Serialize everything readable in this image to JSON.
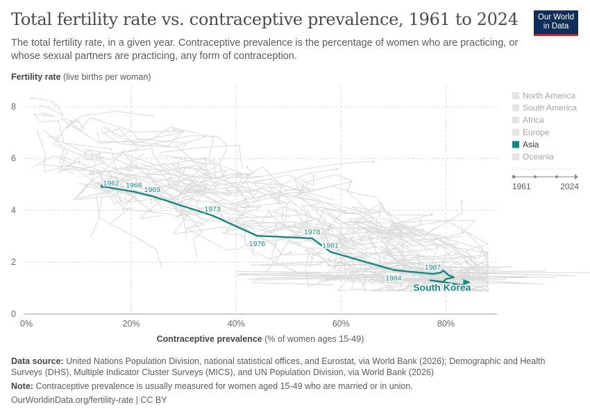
{
  "header": {
    "title": "Total fertility rate vs. contraceptive prevalence, 1961 to 2024",
    "subtitle": "The total fertility rate, in a given year. Contraceptive prevalence is the percentage of women who are practicing, or whose sexual partners are practicing, any form of contraception.",
    "logo_line1": "Our World",
    "logo_line2": "in Data"
  },
  "colors": {
    "highlight": "#16877e",
    "background_lines": "#dcdcdc",
    "grid": "#dedede",
    "logo_bg": "#0f2e5a",
    "logo_accent": "#c4262e"
  },
  "chart_data": {
    "type": "scatter",
    "title": "Total fertility rate vs. contraceptive prevalence, 1961 to 2024",
    "ylabel_bold": "Fertility rate",
    "ylabel_rest": "(live births per woman)",
    "xlabel_bold": "Contraceptive prevalence",
    "xlabel_rest": "(% of women ages 15-49)",
    "xlim": [
      0,
      90
    ],
    "ylim": [
      0,
      8.8
    ],
    "x_ticks": [
      {
        "value": 0,
        "label": "0%"
      },
      {
        "value": 20,
        "label": "20%"
      },
      {
        "value": 40,
        "label": "40%"
      },
      {
        "value": 60,
        "label": "60%"
      },
      {
        "value": 80,
        "label": "80%"
      }
    ],
    "y_ticks": [
      {
        "value": 0,
        "label": "0"
      },
      {
        "value": 2,
        "label": "2"
      },
      {
        "value": 4,
        "label": "4"
      },
      {
        "value": 6,
        "label": "6"
      },
      {
        "value": 8,
        "label": "8"
      }
    ],
    "grid": true,
    "legend_position": "right",
    "legend": [
      {
        "name": "North America",
        "active": false
      },
      {
        "name": "South America",
        "active": false
      },
      {
        "name": "Africa",
        "active": false
      },
      {
        "name": "Europe",
        "active": false
      },
      {
        "name": "Asia",
        "active": true
      },
      {
        "name": "Oceania",
        "active": false
      }
    ],
    "timeline": {
      "start": "1961",
      "end": "2024"
    },
    "highlighted_series": {
      "name": "South Korea",
      "points": [
        {
          "year": 1962,
          "x": 14.5,
          "y": 4.93
        },
        {
          "year": 1965,
          "x": 16.5,
          "y": 4.85
        },
        {
          "year": 1968,
          "x": 20.5,
          "y": 4.72
        },
        {
          "year": 1969,
          "x": 24.0,
          "y": 4.55
        },
        {
          "year": 1973,
          "x": 35.5,
          "y": 3.8
        },
        {
          "year": 1976,
          "x": 44.0,
          "y": 3.02
        },
        {
          "year": 1978,
          "x": 54.5,
          "y": 2.92
        },
        {
          "year": 1981,
          "x": 58.0,
          "y": 2.4
        },
        {
          "year": 1984,
          "x": 70.0,
          "y": 1.7
        },
        {
          "year": 1985,
          "x": 74.0,
          "y": 1.62
        },
        {
          "year": 1987,
          "x": 77.5,
          "y": 1.55
        },
        {
          "year": 1990,
          "x": 79.0,
          "y": 1.6
        },
        {
          "year": 1991,
          "x": 79.5,
          "y": 1.68
        },
        {
          "year": 1994,
          "x": 80.5,
          "y": 1.5
        },
        {
          "year": 1997,
          "x": 81.5,
          "y": 1.42
        },
        {
          "year": 2000,
          "x": 80.0,
          "y": 1.35
        },
        {
          "year": 2003,
          "x": 79.5,
          "y": 1.25
        },
        {
          "year": 2006,
          "x": 77.0,
          "y": 1.3
        },
        {
          "year": 2009,
          "x": 80.5,
          "y": 1.2
        },
        {
          "year": 2012,
          "x": 83.0,
          "y": 1.12
        },
        {
          "year": 2015,
          "x": 84.5,
          "y": 1.24
        }
      ],
      "labeled_years": [
        {
          "year": "1962",
          "x": 14.5,
          "y": 4.93,
          "pos": "right"
        },
        {
          "year": "1968",
          "x": 20.5,
          "y": 4.72,
          "pos": "above"
        },
        {
          "year": "1969",
          "x": 24.0,
          "y": 4.55,
          "pos": "above"
        },
        {
          "year": "1973",
          "x": 35.5,
          "y": 3.8,
          "pos": "above"
        },
        {
          "year": "1976",
          "x": 44.0,
          "y": 3.02,
          "pos": "below"
        },
        {
          "year": "1978",
          "x": 54.5,
          "y": 2.92,
          "pos": "above"
        },
        {
          "year": "1981",
          "x": 58.0,
          "y": 2.4,
          "pos": "above"
        },
        {
          "year": "1984",
          "x": 70.0,
          "y": 1.7,
          "pos": "below"
        },
        {
          "year": "1987",
          "x": 77.5,
          "y": 1.55,
          "pos": "above"
        }
      ],
      "end_label": {
        "text": "South Korea",
        "x": 84.5,
        "y": 1.24
      }
    }
  },
  "footer": {
    "source_label": "Data source:",
    "source_text": "United Nations Population Division, national statistical offices, and Eurostat, via World Bank (2026); Demographic and Health Surveys (DHS), Multiple Indicator Cluster Surveys (MICS), and UN Population Division, via World Bank (2026)",
    "note_label": "Note:",
    "note_text": "Contraceptive prevalence is usually measured for women aged 15-49 who are married or in union.",
    "url": "OurWorldinData.org/fertility-rate | CC BY"
  }
}
